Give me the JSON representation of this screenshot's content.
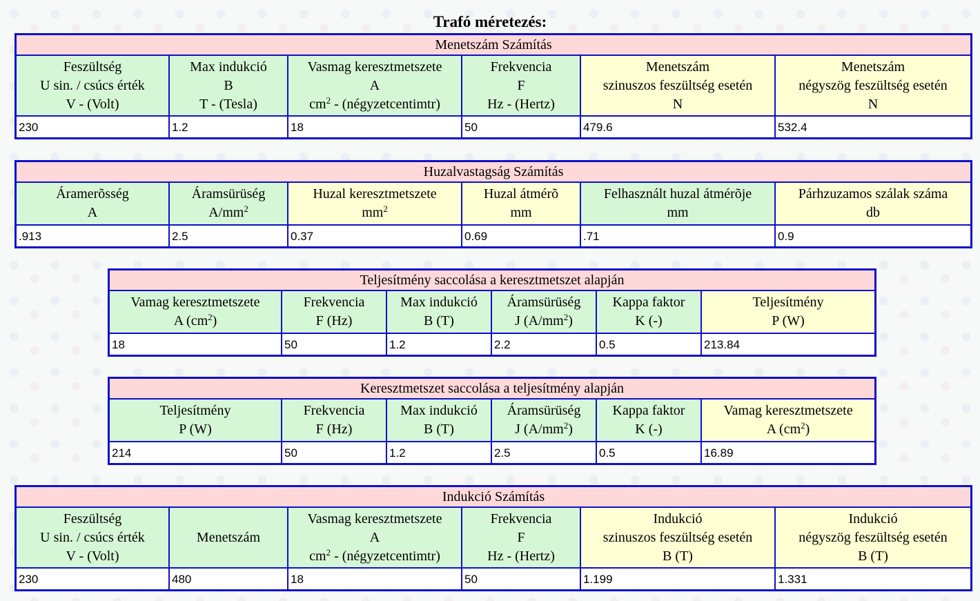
{
  "page_title": "Trafó méretezés:",
  "colors": {
    "border": "#1010c8",
    "title_bg": "#ffd9d9",
    "input_header_bg": "#d6f7d6",
    "output_header_bg": "#ffffd4"
  },
  "menetszam": {
    "title": "Menetszám Számítás",
    "headers": [
      [
        "Feszültség",
        "U sin. / csúcs érték",
        "V - (Volt)"
      ],
      [
        "Max indukció",
        "B",
        "T - (Tesla)"
      ],
      [
        "Vasmag keresztmetszete",
        "A",
        "cm",
        "2",
        " - (négyzetcentimtr)"
      ],
      [
        "Frekvencia",
        "F",
        "Hz - (Hertz)"
      ],
      [
        "Menetszám",
        "szinuszos feszültség esetén",
        "N"
      ],
      [
        "Menetszám",
        "négyszög feszültség esetén",
        "N"
      ]
    ],
    "values": [
      "230",
      "1.2",
      "18",
      "50",
      "479.6",
      "532.4"
    ]
  },
  "huzal": {
    "title": "Huzalvastagság Számítás",
    "headers": [
      [
        "Áramerõsség",
        "A"
      ],
      [
        "Áramsürüség",
        "A/mm",
        "2"
      ],
      [
        "Huzal keresztmetszete",
        "mm",
        "2"
      ],
      [
        "Huzal átmérõ",
        "mm"
      ],
      [
        "Felhasznált huzal átmérõje",
        "mm"
      ],
      [
        "Párhzuzamos szálak száma",
        "db"
      ]
    ],
    "values": [
      ".913",
      "2.5",
      "0.37",
      "0.69",
      ".71",
      "0.9"
    ]
  },
  "teljesitmeny": {
    "title": "Teljesítmény saccolása a keresztmetszet alapján",
    "headers": [
      [
        "Vamag keresztmetszete",
        "A (cm",
        "2",
        ")"
      ],
      [
        "Frekvencia",
        "F (Hz)"
      ],
      [
        "Max indukció",
        "B (T)"
      ],
      [
        "Áramsürüség",
        "J (A/mm",
        "2",
        ")"
      ],
      [
        "Kappa faktor",
        "K (-)"
      ],
      [
        "Teljesítmény",
        "P (W)"
      ]
    ],
    "values": [
      "18",
      "50",
      "1.2",
      "2.2",
      "0.5",
      "213.84"
    ]
  },
  "keresztmetszet": {
    "title": "Keresztmetszet saccolása a teljesítmény alapján",
    "headers": [
      [
        "Teljesítmény",
        "P (W)"
      ],
      [
        "Frekvencia",
        "F (Hz)"
      ],
      [
        "Max indukció",
        "B (T)"
      ],
      [
        "Áramsürüség",
        "J (A/mm",
        "2",
        ")"
      ],
      [
        "Kappa faktor",
        "K (-)"
      ],
      [
        "Vamag keresztmetszete",
        "A (cm",
        "2",
        ")"
      ]
    ],
    "values": [
      "214",
      "50",
      "1.2",
      "2.5",
      "0.5",
      "16.89"
    ]
  },
  "indukcio": {
    "title": "Indukció Számítás",
    "headers": [
      [
        "Feszültség",
        "U sin. / csúcs érték",
        "V - (Volt)"
      ],
      [
        "Menetszám"
      ],
      [
        "Vasmag keresztmetszete",
        "A",
        "cm",
        "2",
        " - (négyzetcentimtr)"
      ],
      [
        "Frekvencia",
        "F",
        "Hz - (Hertz)"
      ],
      [
        "Indukció",
        "szinuszos feszültség esetén",
        "B (T)"
      ],
      [
        "Indukció",
        "négyszög feszültség esetén",
        "B (T)"
      ]
    ],
    "values": [
      "230",
      "480",
      "18",
      "50",
      "1.199",
      "1.331"
    ]
  }
}
